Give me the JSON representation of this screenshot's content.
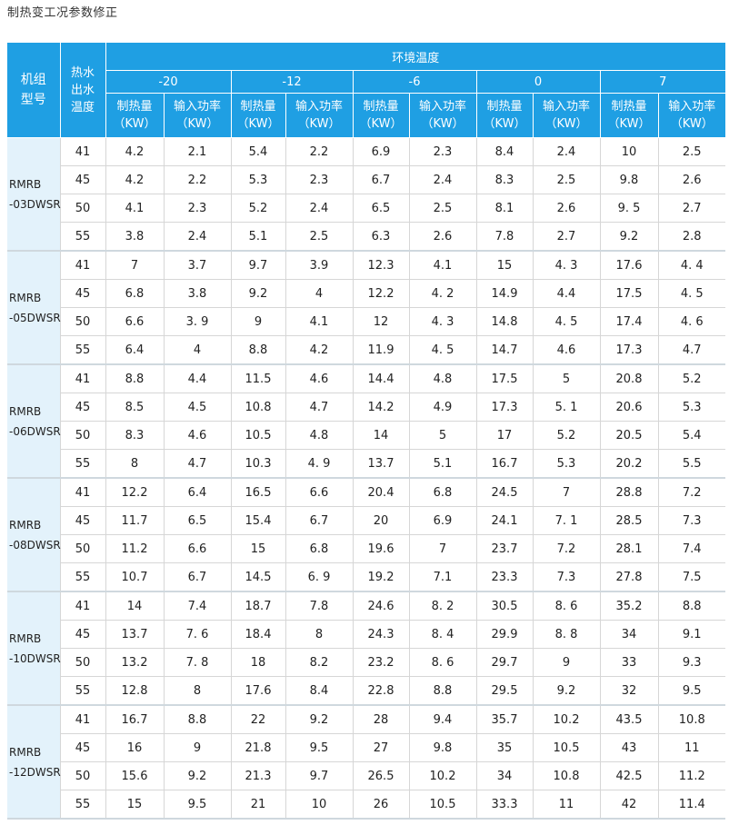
{
  "page": {
    "title": "制热变工况参数修正"
  },
  "table": {
    "header": {
      "model_col": [
        "机组",
        "型号"
      ],
      "water_col": [
        "热水",
        "出水",
        "温度"
      ],
      "env_label": "环境温度",
      "env_temps": [
        "-20",
        "-12",
        "-6",
        "0",
        "7"
      ],
      "sub_cols": [
        {
          "line1": "制热量",
          "line2": "（KW）"
        },
        {
          "line1": "输入功率",
          "line2": "（KW）"
        }
      ]
    },
    "groups": [
      {
        "model": [
          "RMRB",
          "-03DWSR"
        ],
        "rows": [
          {
            "temp": "41",
            "values": [
              "4.2",
              "2.1",
              "5.4",
              "2.2",
              "6.9",
              "2.3",
              "8.4",
              "2.4",
              "10",
              "2.5"
            ]
          },
          {
            "temp": "45",
            "values": [
              "4.2",
              "2.2",
              "5.3",
              "2.3",
              "6.7",
              "2.4",
              "8.3",
              "2.5",
              "9.8",
              "2.6"
            ]
          },
          {
            "temp": "50",
            "values": [
              "4.1",
              "2.3",
              "5.2",
              "2.4",
              "6.5",
              "2.5",
              "8.1",
              "2.6",
              "9. 5",
              "2.7"
            ]
          },
          {
            "temp": "55",
            "values": [
              "3.8",
              "2.4",
              "5.1",
              "2.5",
              "6.3",
              "2.6",
              "7.8",
              "2.7",
              "9.2",
              "2.8"
            ]
          }
        ]
      },
      {
        "model": [
          "RMRB",
          "-05DWSR"
        ],
        "rows": [
          {
            "temp": "41",
            "values": [
              "7",
              "3.7",
              "9.7",
              "3.9",
              "12.3",
              "4.1",
              "15",
              "4. 3",
              "17.6",
              "4. 4"
            ]
          },
          {
            "temp": "45",
            "values": [
              "6.8",
              "3.8",
              "9.2",
              "4",
              "12.2",
              "4. 2",
              "14.9",
              "4.4",
              "17.5",
              "4. 5"
            ]
          },
          {
            "temp": "50",
            "values": [
              "6.6",
              "3. 9",
              "9",
              "4.1",
              "12",
              "4. 3",
              "14.8",
              "4. 5",
              "17.4",
              "4. 6"
            ]
          },
          {
            "temp": "55",
            "values": [
              "6.4",
              "4",
              "8.8",
              "4.2",
              "11.9",
              "4. 5",
              "14.7",
              "4.6",
              "17.3",
              "4.7"
            ]
          }
        ]
      },
      {
        "model": [
          "RMRB",
          "-06DWSR"
        ],
        "rows": [
          {
            "temp": "41",
            "values": [
              "8.8",
              "4.4",
              "11.5",
              "4.6",
              "14.4",
              "4.8",
              "17.5",
              "5",
              "20.8",
              "5.2"
            ]
          },
          {
            "temp": "45",
            "values": [
              "8.5",
              "4.5",
              "10.8",
              "4.7",
              "14.2",
              "4.9",
              "17.3",
              "5. 1",
              "20.6",
              "5.3"
            ]
          },
          {
            "temp": "50",
            "values": [
              "8.3",
              "4.6",
              "10.5",
              "4.8",
              "14",
              "5",
              "17",
              "5.2",
              "20.5",
              "5.4"
            ]
          },
          {
            "temp": "55",
            "values": [
              "8",
              "4.7",
              "10.3",
              "4. 9",
              "13.7",
              "5.1",
              "16.7",
              "5.3",
              "20.2",
              "5.5"
            ]
          }
        ]
      },
      {
        "model": [
          "RMRB",
          "-08DWSR"
        ],
        "rows": [
          {
            "temp": "41",
            "values": [
              "12.2",
              "6.4",
              "16.5",
              "6.6",
              "20.4",
              "6.8",
              "24.5",
              "7",
              "28.8",
              "7.2"
            ]
          },
          {
            "temp": "45",
            "values": [
              "11.7",
              "6.5",
              "15.4",
              "6.7",
              "20",
              "6.9",
              "24.1",
              "7. 1",
              "28.5",
              "7.3"
            ]
          },
          {
            "temp": "50",
            "values": [
              "11.2",
              "6.6",
              "15",
              "6.8",
              "19.6",
              "7",
              "23.7",
              "7.2",
              "28.1",
              "7.4"
            ]
          },
          {
            "temp": "55",
            "values": [
              "10.7",
              "6.7",
              "14.5",
              "6. 9",
              "19.2",
              "7.1",
              "23.3",
              "7.3",
              "27.8",
              "7.5"
            ]
          }
        ]
      },
      {
        "model": [
          "RMRB",
          "-10DWSR"
        ],
        "rows": [
          {
            "temp": "41",
            "values": [
              "14",
              "7.4",
              "18.7",
              "7.8",
              "24.6",
              "8. 2",
              "30.5",
              "8. 6",
              "35.2",
              "8.8"
            ]
          },
          {
            "temp": "45",
            "values": [
              "13.7",
              "7. 6",
              "18.4",
              "8",
              "24.3",
              "8. 4",
              "29.9",
              "8. 8",
              "34",
              "9.1"
            ]
          },
          {
            "temp": "50",
            "values": [
              "13.2",
              "7. 8",
              "18",
              "8.2",
              "23.2",
              "8. 6",
              "29.7",
              "9",
              "33",
              "9.3"
            ]
          },
          {
            "temp": "55",
            "values": [
              "12.8",
              "8",
              "17.6",
              "8.4",
              "22.8",
              "8.8",
              "29.5",
              "9.2",
              "32",
              "9.5"
            ]
          }
        ]
      },
      {
        "model": [
          "RMRB",
          "-12DWSR"
        ],
        "rows": [
          {
            "temp": "41",
            "values": [
              "16.7",
              "8.8",
              "22",
              "9.2",
              "28",
              "9.4",
              "35.7",
              "10.2",
              "43.5",
              "10.8"
            ]
          },
          {
            "temp": "45",
            "values": [
              "16",
              "9",
              "21.8",
              "9.5",
              "27",
              "9.8",
              "35",
              "10.5",
              "43",
              "11"
            ]
          },
          {
            "temp": "50",
            "values": [
              "15.6",
              "9.2",
              "21.3",
              "9.7",
              "26.5",
              "10.2",
              "34",
              "10.8",
              "42.5",
              "11.2"
            ]
          },
          {
            "temp": "55",
            "values": [
              "15",
              "9.5",
              "21",
              "10",
              "26",
              "10.5",
              "33.3",
              "11",
              "42",
              "11.4"
            ]
          }
        ]
      }
    ]
  }
}
